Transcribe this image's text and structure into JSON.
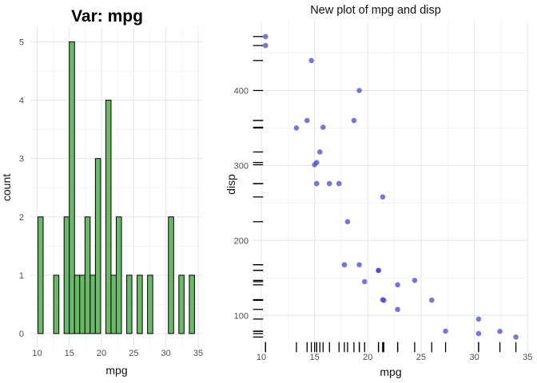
{
  "figure": {
    "background": "#ffffff",
    "grid_major_color": "#e7e7e7",
    "grid_minor_color": "#f1f1f1",
    "tick_label_color": "#4d4d4d"
  },
  "chart_data": [
    {
      "type": "bar",
      "title": "Var: mpg",
      "xlabel": "mpg",
      "ylabel": "count",
      "x_ticks": [
        10,
        15,
        20,
        25,
        30,
        35
      ],
      "y_ticks": [
        0,
        1,
        2,
        3,
        4,
        5
      ],
      "xlim": [
        8.95,
        35.65
      ],
      "ylim": [
        -0.25,
        5.25
      ],
      "grid": true,
      "binwidth": 0.81,
      "bar_fill": "#69b969",
      "bar_stroke": "#000000",
      "bins": [
        [
          10.53,
          2
        ],
        [
          12.97,
          1
        ],
        [
          14.59,
          2
        ],
        [
          15.4,
          5
        ],
        [
          16.21,
          1
        ],
        [
          17.02,
          1
        ],
        [
          17.83,
          2
        ],
        [
          18.64,
          1
        ],
        [
          19.45,
          3
        ],
        [
          21.07,
          4
        ],
        [
          21.88,
          1
        ],
        [
          22.69,
          2
        ],
        [
          24.31,
          1
        ],
        [
          25.93,
          1
        ],
        [
          27.55,
          1
        ],
        [
          30.79,
          2
        ],
        [
          32.41,
          1
        ],
        [
          34.03,
          1
        ]
      ]
    },
    {
      "type": "scatter",
      "title": "New plot of mpg and disp",
      "xlabel": "mpg",
      "ylabel": "disp",
      "x_ticks": [
        10,
        15,
        20,
        25,
        30,
        35
      ],
      "y_ticks": [
        100,
        200,
        300,
        400
      ],
      "xlim": [
        9.23,
        35.08
      ],
      "ylim": [
        51,
        492
      ],
      "grid": true,
      "point_color": "#4343c8",
      "point_opacity": 0.72,
      "point_radius": 3.3,
      "rug": true,
      "rug_color": "#000000",
      "points": [
        [
          21.0,
          160.0
        ],
        [
          21.0,
          160.0
        ],
        [
          22.8,
          108.0
        ],
        [
          21.4,
          258.0
        ],
        [
          18.7,
          360.0
        ],
        [
          18.1,
          225.0
        ],
        [
          14.3,
          360.0
        ],
        [
          24.4,
          146.7
        ],
        [
          22.8,
          140.8
        ],
        [
          19.2,
          167.6
        ],
        [
          17.8,
          167.6
        ],
        [
          16.4,
          275.8
        ],
        [
          17.3,
          275.8
        ],
        [
          15.2,
          275.8
        ],
        [
          10.4,
          472.0
        ],
        [
          10.4,
          460.0
        ],
        [
          14.7,
          440.0
        ],
        [
          32.4,
          78.7
        ],
        [
          30.4,
          75.7
        ],
        [
          33.9,
          71.1
        ],
        [
          21.5,
          120.1
        ],
        [
          15.5,
          318.0
        ],
        [
          15.2,
          304.0
        ],
        [
          13.3,
          350.0
        ],
        [
          19.2,
          400.0
        ],
        [
          27.3,
          79.0
        ],
        [
          26.0,
          120.3
        ],
        [
          30.4,
          95.1
        ],
        [
          15.8,
          351.0
        ],
        [
          19.7,
          145.0
        ],
        [
          15.0,
          301.0
        ],
        [
          21.4,
          121.0
        ]
      ]
    }
  ]
}
